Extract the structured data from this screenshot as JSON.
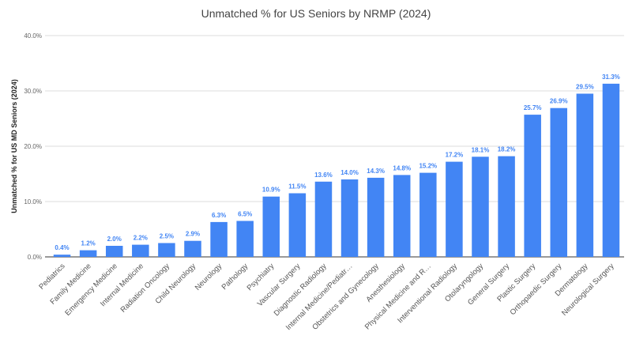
{
  "chart_data": {
    "type": "bar",
    "title": "Unmatched % for US Seniors by NRMP (2024)",
    "xlabel": "",
    "ylabel": "Unmatched % for US MD Seniors (2024)",
    "ylim": [
      0,
      40
    ],
    "yticks": [
      "0.0%",
      "10.0%",
      "20.0%",
      "30.0%",
      "40.0%"
    ],
    "grid": true,
    "bar_color": "#4285f4",
    "categories": [
      "Pediatrics",
      "Family Medicine",
      "Emergency Medicine",
      "Internal Medicine",
      "Radiation Oncology",
      "Child Neurology",
      "Neurology",
      "Pathology",
      "Psychiatry",
      "Vascular Surgery",
      "Diagnostic Radiology",
      "Internal Medicine/Pediatr…",
      "Obstetrics and Gynecology",
      "Anesthesiology",
      "Physical Medicine and R…",
      "Interventional Radiology",
      "Otolaryngology",
      "General Surgery",
      "Plastic Surgery",
      "Orthopaedic Surgery",
      "Dermatology",
      "Neurological Surgery"
    ],
    "values": [
      0.4,
      1.2,
      2.0,
      2.2,
      2.5,
      2.9,
      6.3,
      6.5,
      10.9,
      11.5,
      13.6,
      14.0,
      14.3,
      14.8,
      15.2,
      17.2,
      18.1,
      18.2,
      25.7,
      26.9,
      29.5,
      31.3
    ],
    "data_labels": [
      "0.4%",
      "1.2%",
      "2.0%",
      "2.2%",
      "2.5%",
      "2.9%",
      "6.3%",
      "6.5%",
      "10.9%",
      "11.5%",
      "13.6%",
      "14.0%",
      "14.3%",
      "14.8%",
      "15.2%",
      "17.2%",
      "18.1%",
      "18.2%",
      "25.7%",
      "26.9%",
      "29.5%",
      "31.3%"
    ]
  }
}
